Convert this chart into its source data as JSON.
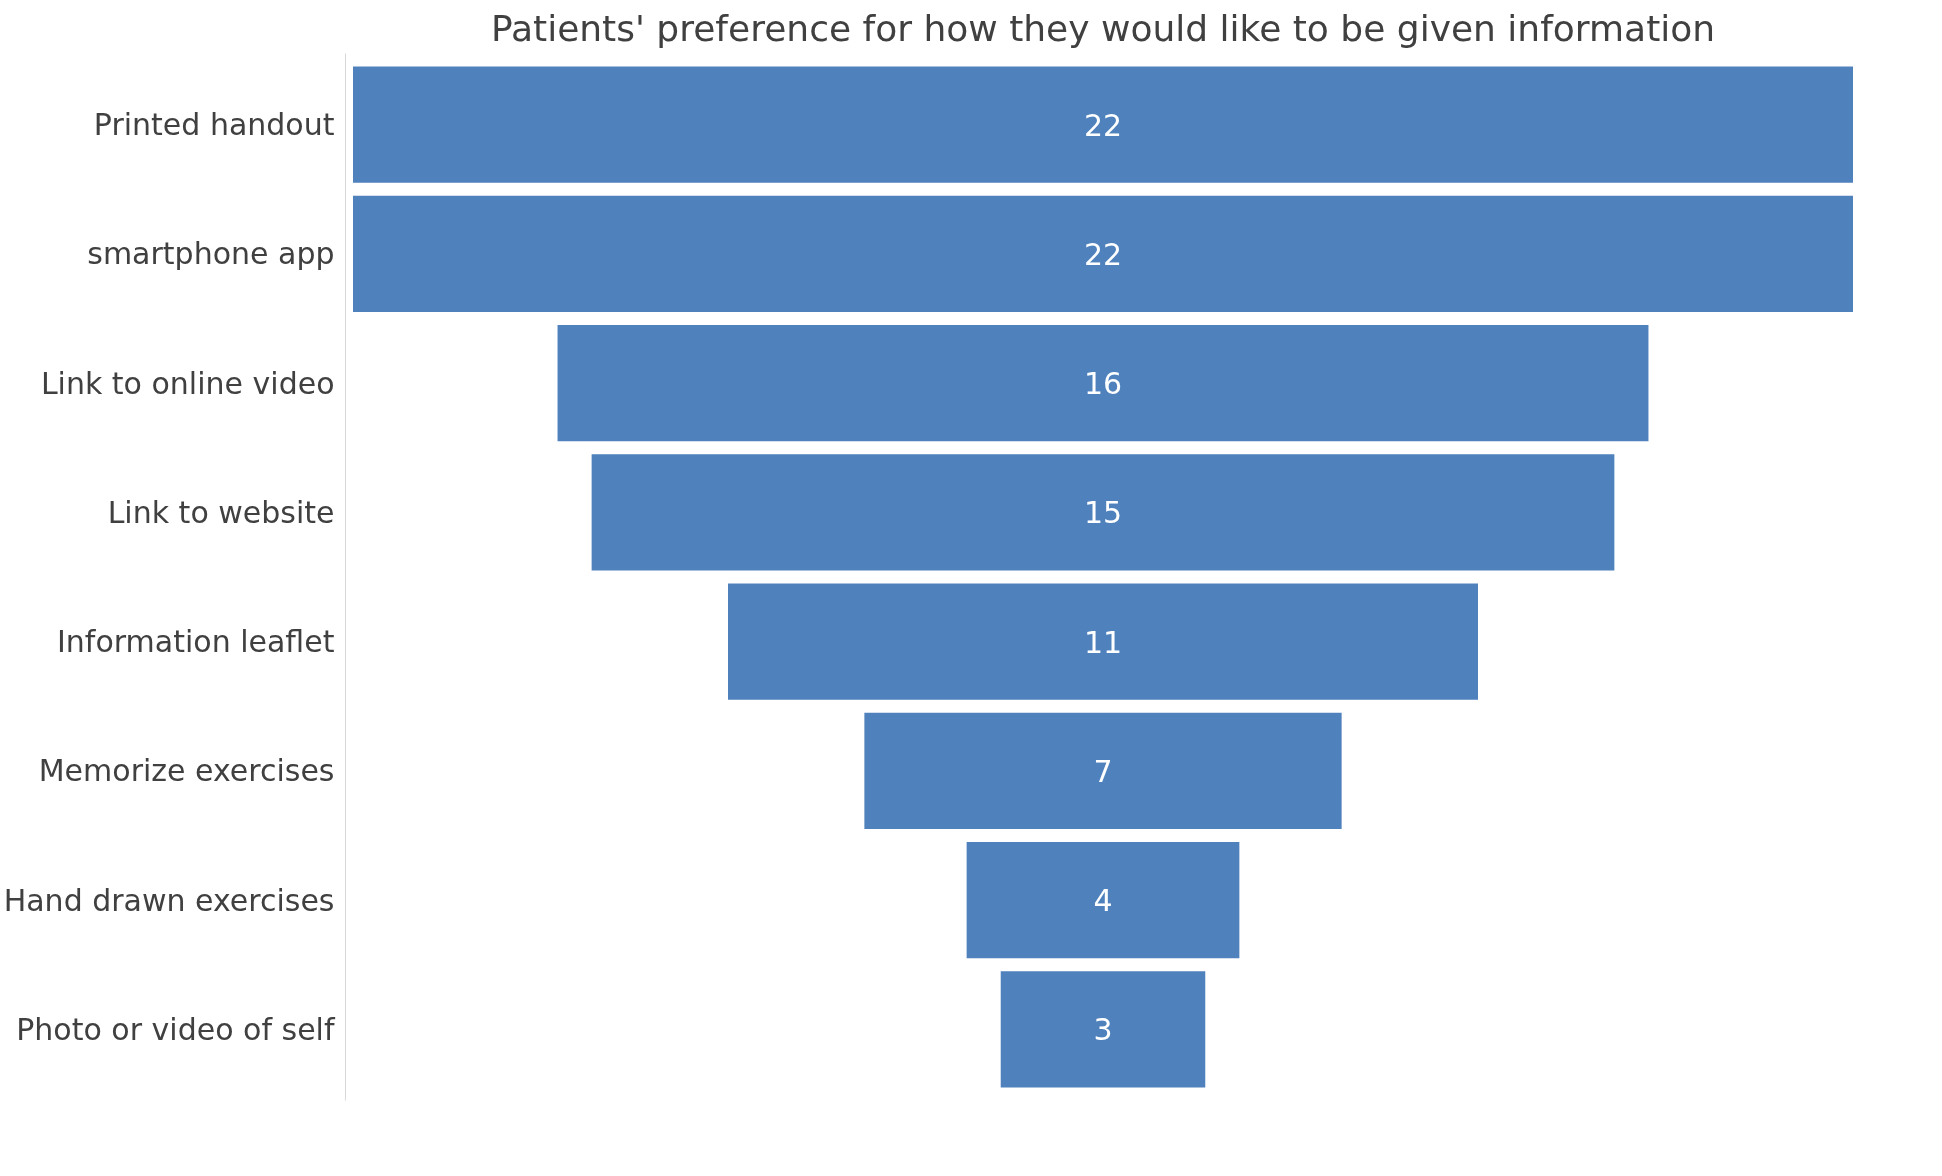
{
  "chart_data": {
    "type": "other",
    "title": "Patients' preference for how they would like to be given information",
    "categories": [
      "Printed handout",
      "smartphone app",
      "Link to online video",
      "Link to website",
      "Information leaflet",
      "Memorize exercises",
      "Hand drawn exercises",
      "Photo or video of self"
    ],
    "values": [
      22,
      22,
      16,
      15,
      11,
      7,
      4,
      3
    ],
    "color": "#4f81bd",
    "data_labels": true
  }
}
